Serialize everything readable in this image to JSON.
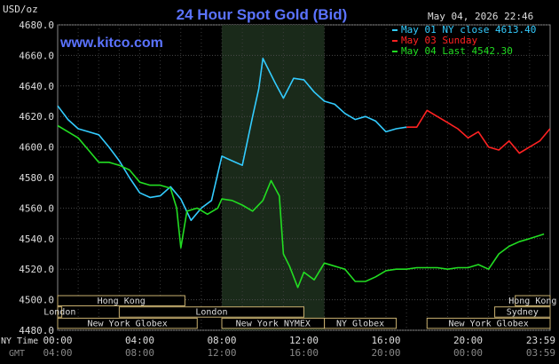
{
  "chart_data": {
    "type": "line",
    "title": "24 Hour Spot Gold (Bid)",
    "ylabel": "USD/oz",
    "website": "www.kitco.com",
    "timestamp": "May 04, 2026 22:46",
    "ylim": [
      4480,
      4680
    ],
    "y_ticks": [
      "4680.0",
      "4660.0",
      "4640.0",
      "4620.0",
      "4600.0",
      "4580.0",
      "4560.0",
      "4540.0",
      "4520.0",
      "4500.0",
      "4480.0"
    ],
    "x_ticks_ny": [
      "00:00",
      "04:00",
      "08:00",
      "12:00",
      "16:00",
      "20:00",
      "23:59"
    ],
    "x_ticks_gmt": [
      "04:00",
      "08:00",
      "12:00",
      "16:00",
      "20:00",
      "00:00",
      "03:59"
    ],
    "x_row_labels": {
      "ny": "NY Time",
      "gmt": "GMT"
    },
    "legend": [
      {
        "label": "May 01 NY close 4613.40",
        "color": "#33ccff"
      },
      {
        "label": "May 03 Sunday",
        "color": "#ff2222"
      },
      {
        "label": "May 04 Last 4542.30",
        "color": "#22dd22"
      }
    ],
    "series": [
      {
        "name": "May 01 NY close 4613.40",
        "color": "#33ccff",
        "x": [
          0,
          0.5,
          1,
          1.5,
          2,
          2.5,
          3,
          3.5,
          4,
          4.5,
          5,
          5.5,
          6,
          6.5,
          7,
          7.5,
          8,
          8.5,
          9,
          9.5,
          9.8,
          10,
          10.3,
          10.6,
          11,
          11.5,
          12,
          12.5,
          13,
          13.5,
          14,
          14.5,
          15,
          15.5,
          16,
          16.5,
          17
        ],
        "values": [
          4627,
          4618,
          4612,
          4610,
          4608,
          4600,
          4591,
          4580,
          4570,
          4567,
          4568,
          4574,
          4566,
          4552,
          4560,
          4565,
          4594,
          4591,
          4588,
          4620,
          4638,
          4658,
          4650,
          4642,
          4632,
          4645,
          4644,
          4636,
          4630,
          4628,
          4622,
          4618,
          4620,
          4617,
          4610,
          4612,
          4613
        ]
      },
      {
        "name": "May 03 Sunday",
        "color": "#ff2222",
        "x": [
          17,
          17.5,
          18,
          18.5,
          19,
          19.5,
          20,
          20.5,
          21,
          21.5,
          22,
          22.5,
          23,
          23.5,
          23.99
        ],
        "values": [
          4613,
          4613,
          4624,
          4620,
          4616,
          4612,
          4606,
          4610,
          4600,
          4598,
          4604,
          4596,
          4600,
          4604,
          4612
        ]
      },
      {
        "name": "May 04 Last 4542.30",
        "color": "#22dd22",
        "x": [
          0,
          0.5,
          1,
          1.5,
          2,
          2.5,
          3,
          3.5,
          4,
          4.5,
          5,
          5.5,
          5.8,
          6,
          6.3,
          6.8,
          7.3,
          7.8,
          8,
          8.5,
          9,
          9.5,
          10,
          10.4,
          10.8,
          11,
          11.3,
          11.7,
          12,
          12.5,
          13,
          13.5,
          14,
          14.5,
          15,
          15.5,
          16,
          16.5,
          17,
          17.5,
          18,
          18.5,
          19,
          19.5,
          20,
          20.5,
          21,
          21.5,
          22,
          22.5,
          23,
          23.7
        ],
        "values": [
          4614,
          4610,
          4606,
          4598,
          4590,
          4590,
          4588,
          4585,
          4577,
          4575,
          4575,
          4573,
          4560,
          4534,
          4558,
          4560,
          4556,
          4560,
          4566,
          4565,
          4562,
          4558,
          4565,
          4578,
          4568,
          4530,
          4522,
          4508,
          4518,
          4513,
          4524,
          4522,
          4520,
          4512,
          4512,
          4515,
          4519,
          4520,
          4520,
          4521,
          4521,
          4521,
          4520,
          4521,
          4521,
          4523,
          4520,
          4530,
          4535,
          4538,
          4540,
          4543
        ]
      }
    ],
    "session_rows": [
      {
        "row": 0,
        "bars": [
          {
            "label": "Hong Kong",
            "start": 0,
            "end": 6.2
          },
          {
            "label": "Hong Kong",
            "start": 22.3,
            "end": 24
          }
        ]
      },
      {
        "row": 1,
        "bars": [
          {
            "label": "London",
            "start": 0,
            "end": 0.2
          },
          {
            "label": "London",
            "start": 3,
            "end": 12
          },
          {
            "label": "Sydney",
            "start": 21.3,
            "end": 24
          }
        ]
      },
      {
        "row": 2,
        "bars": [
          {
            "label": "New York Globex",
            "start": 0,
            "end": 6.8
          },
          {
            "label": "New York NYMEX",
            "start": 8,
            "end": 13
          },
          {
            "label": "NY Globex",
            "start": 13,
            "end": 16.5
          },
          {
            "label": "New York Globex",
            "start": 18,
            "end": 24
          }
        ]
      }
    ],
    "highlight_range": [
      8,
      13
    ],
    "grid": true
  }
}
